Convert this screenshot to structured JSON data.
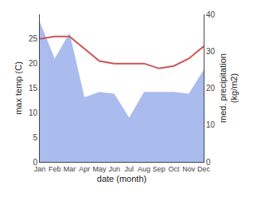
{
  "chart_data": {
    "type": "line",
    "xlabel": "date (month)",
    "ylabel": "max temp (C)",
    "y2label": "med. precipitation\n(kg/m2)",
    "categories": [
      "Jan",
      "Feb",
      "Mar",
      "Apr",
      "May",
      "Jun",
      "Jul",
      "Aug",
      "Sep",
      "Oct",
      "Nov",
      "Dec"
    ],
    "series": [
      {
        "type": "area",
        "axis": "y2",
        "color": "#aabbee",
        "values": [
          38.0,
          28.0,
          35.0,
          17.5,
          19.0,
          18.5,
          12.0,
          19.0,
          19.0,
          19.0,
          18.5,
          25.0
        ]
      },
      {
        "type": "line",
        "axis": "y",
        "color": "#cc5555",
        "values": [
          25.0,
          25.5,
          25.5,
          23.0,
          20.5,
          20.0,
          20.0,
          20.0,
          19.0,
          19.5,
          21.0,
          23.5
        ]
      }
    ],
    "ylim": [
      0,
      30
    ],
    "yticks": [
      0,
      5,
      10,
      15,
      20,
      25
    ],
    "y2lim": [
      0,
      40
    ],
    "y2ticks": [
      0,
      10,
      20,
      30,
      40
    ],
    "grid": false
  }
}
